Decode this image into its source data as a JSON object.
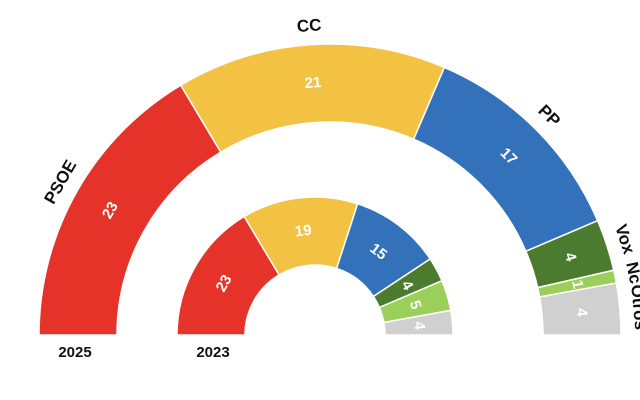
{
  "chart_data": {
    "type": "semicircle-donut",
    "categories": [
      "PSOE",
      "CC",
      "PP",
      "Vox",
      "Nc",
      "Otros"
    ],
    "colors": [
      "#e5332a",
      "#f4c242",
      "#3371bb",
      "#4b7b2e",
      "#9bcf5b",
      "#d0d0d0"
    ],
    "series": [
      {
        "name": "2025",
        "values": [
          23,
          21,
          17,
          4,
          1,
          4
        ]
      },
      {
        "name": "2023",
        "values": [
          23,
          19,
          15,
          4,
          5,
          4
        ]
      }
    ]
  }
}
